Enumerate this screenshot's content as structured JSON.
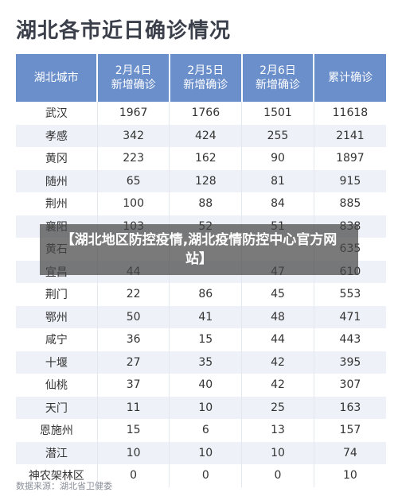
{
  "title": "湖北各市近日确诊情况",
  "table": {
    "headers": [
      "湖北城市",
      "2月4日\n新增确诊",
      "2月5日\n新增确诊",
      "2月6日\n新增确诊",
      "累计确诊"
    ],
    "rows": [
      [
        "武汉",
        "1967",
        "1766",
        "1501",
        "11618"
      ],
      [
        "孝感",
        "342",
        "424",
        "255",
        "2141"
      ],
      [
        "黄冈",
        "223",
        "162",
        "90",
        "1897"
      ],
      [
        "随州",
        "65",
        "128",
        "81",
        "915"
      ],
      [
        "荆州",
        "100",
        "88",
        "84",
        "885"
      ],
      [
        "襄阳",
        "103",
        "52",
        "51",
        "838"
      ],
      [
        "黄石",
        "",
        "",
        "",
        "635"
      ],
      [
        "宜昌",
        "44",
        "",
        "47",
        "610"
      ],
      [
        "荆门",
        "22",
        "86",
        "45",
        "553"
      ],
      [
        "鄂州",
        "50",
        "41",
        "48",
        "471"
      ],
      [
        "咸宁",
        "36",
        "15",
        "44",
        "443"
      ],
      [
        "十堰",
        "27",
        "35",
        "42",
        "395"
      ],
      [
        "仙桃",
        "37",
        "40",
        "42",
        "307"
      ],
      [
        "天门",
        "11",
        "10",
        "25",
        "163"
      ],
      [
        "恩施州",
        "15",
        "6",
        "13",
        "157"
      ],
      [
        "潜江",
        "10",
        "10",
        "10",
        "74"
      ],
      [
        "神农架林区",
        "0",
        "0",
        "0",
        "10"
      ]
    ]
  },
  "source": "数据来源：湖北省卫健委",
  "overlay": {
    "text": "【湖北地区防控疫情,湖北疫情防控中心官方网站】"
  },
  "colors": {
    "header_bg": "#6b8fcb",
    "stripe_bg": "#eef2f8",
    "title_text": "#3a3f4a"
  }
}
